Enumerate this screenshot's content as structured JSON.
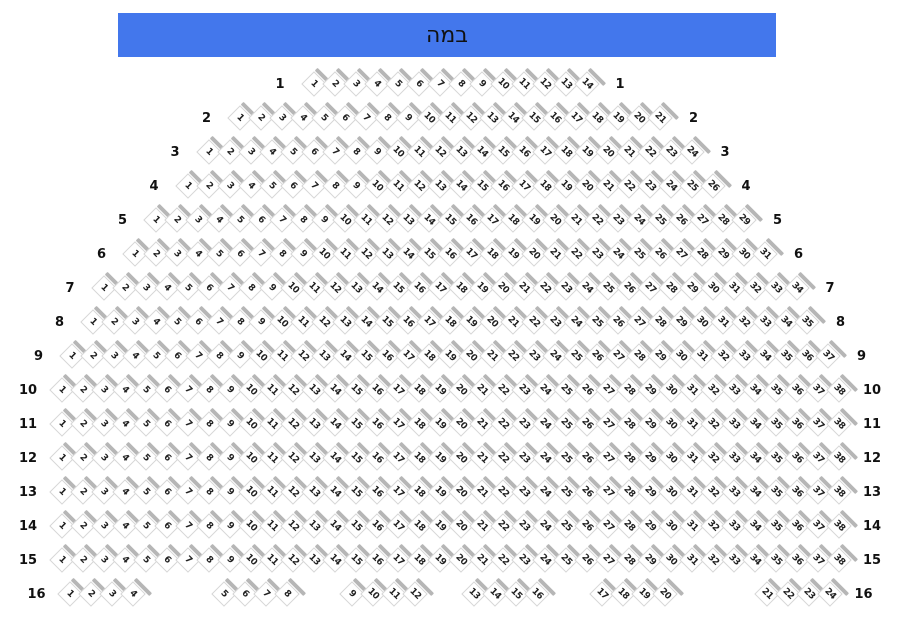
{
  "stage": {
    "label": "במה"
  },
  "colors": {
    "stage_bg": "#4377ec",
    "stage_text": "#111111",
    "seat_fill": "#ffffff",
    "seat_border": "#d6d6d6",
    "seat_back": "#b6b6b6",
    "seat_number": "#222222",
    "row_label": "#111111"
  },
  "seat_map": {
    "seat_numbering": "sequential-from-1-per-row",
    "rows": [
      {
        "label": "1",
        "groups": [
          14
        ],
        "gaps": []
      },
      {
        "label": "2",
        "groups": [
          21
        ],
        "gaps": []
      },
      {
        "label": "3",
        "groups": [
          24
        ],
        "gaps": []
      },
      {
        "label": "4",
        "groups": [
          26
        ],
        "gaps": []
      },
      {
        "label": "5",
        "groups": [
          29
        ],
        "gaps": []
      },
      {
        "label": "6",
        "groups": [
          31
        ],
        "gaps": []
      },
      {
        "label": "7",
        "groups": [
          34
        ],
        "gaps": []
      },
      {
        "label": "8",
        "groups": [
          35
        ],
        "gaps": []
      },
      {
        "label": "9",
        "groups": [
          37
        ],
        "gaps": []
      },
      {
        "label": "10",
        "groups": [
          38
        ],
        "gaps": []
      },
      {
        "label": "11",
        "groups": [
          38
        ],
        "gaps": []
      },
      {
        "label": "12",
        "groups": [
          38
        ],
        "gaps": []
      },
      {
        "label": "13",
        "groups": [
          38
        ],
        "gaps": []
      },
      {
        "label": "14",
        "groups": [
          38
        ],
        "gaps": []
      },
      {
        "label": "15",
        "groups": [
          38
        ],
        "gaps": []
      },
      {
        "label": "16",
        "groups": [
          4,
          4,
          4,
          4,
          4,
          4
        ],
        "gaps": [
          70,
          44,
          38,
          44,
          81
        ]
      }
    ]
  }
}
